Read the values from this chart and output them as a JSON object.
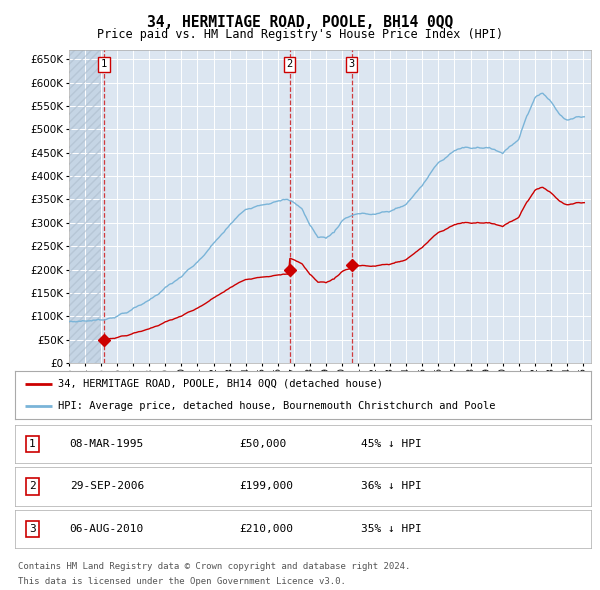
{
  "title": "34, HERMITAGE ROAD, POOLE, BH14 0QQ",
  "subtitle": "Price paid vs. HM Land Registry's House Price Index (HPI)",
  "legend_line1": "34, HERMITAGE ROAD, POOLE, BH14 0QQ (detached house)",
  "legend_line2": "HPI: Average price, detached house, Bournemouth Christchurch and Poole",
  "table_entries": [
    {
      "num": 1,
      "date": "08-MAR-1995",
      "price": "£50,000",
      "change": "45% ↓ HPI"
    },
    {
      "num": 2,
      "date": "29-SEP-2006",
      "price": "£199,000",
      "change": "36% ↓ HPI"
    },
    {
      "num": 3,
      "date": "06-AUG-2010",
      "price": "£210,000",
      "change": "35% ↓ HPI"
    }
  ],
  "footnote1": "Contains HM Land Registry data © Crown copyright and database right 2024.",
  "footnote2": "This data is licensed under the Open Government Licence v3.0.",
  "sale_dates_num": [
    1995.18,
    2006.74,
    2010.59
  ],
  "sale_prices": [
    50000,
    199000,
    210000
  ],
  "hpi_color": "#7ab4d8",
  "red_color": "#cc0000",
  "plot_bg": "#dce6f1",
  "grid_color": "#ffffff",
  "ylim": [
    0,
    670000
  ],
  "xlim": [
    1993.0,
    2025.5
  ],
  "yticks": [
    0,
    50000,
    100000,
    150000,
    200000,
    250000,
    300000,
    350000,
    400000,
    450000,
    500000,
    550000,
    600000,
    650000
  ],
  "hpi_anchor_x": [
    1993.0,
    1994.0,
    1995.0,
    1996.0,
    1997.0,
    1998.0,
    1999.0,
    2000.0,
    2001.0,
    2002.0,
    2003.0,
    2004.0,
    2005.0,
    2006.0,
    2006.5,
    2007.0,
    2007.5,
    2008.0,
    2008.5,
    2009.0,
    2009.5,
    2010.0,
    2010.5,
    2011.0,
    2012.0,
    2013.0,
    2014.0,
    2015.0,
    2016.0,
    2017.0,
    2017.5,
    2018.0,
    2019.0,
    2020.0,
    2021.0,
    2021.5,
    2022.0,
    2022.5,
    2023.0,
    2023.5,
    2024.0,
    2024.5,
    2025.0
  ],
  "hpi_anchor_y": [
    88000,
    90000,
    92000,
    100000,
    115000,
    135000,
    160000,
    185000,
    215000,
    255000,
    295000,
    330000,
    340000,
    345000,
    350000,
    345000,
    330000,
    295000,
    270000,
    268000,
    280000,
    305000,
    315000,
    320000,
    318000,
    325000,
    340000,
    380000,
    430000,
    455000,
    460000,
    460000,
    462000,
    450000,
    480000,
    530000,
    565000,
    580000,
    560000,
    535000,
    520000,
    525000,
    530000
  ],
  "ratio1": 0.543,
  "ratio2": 0.643,
  "ratio3": 0.651
}
